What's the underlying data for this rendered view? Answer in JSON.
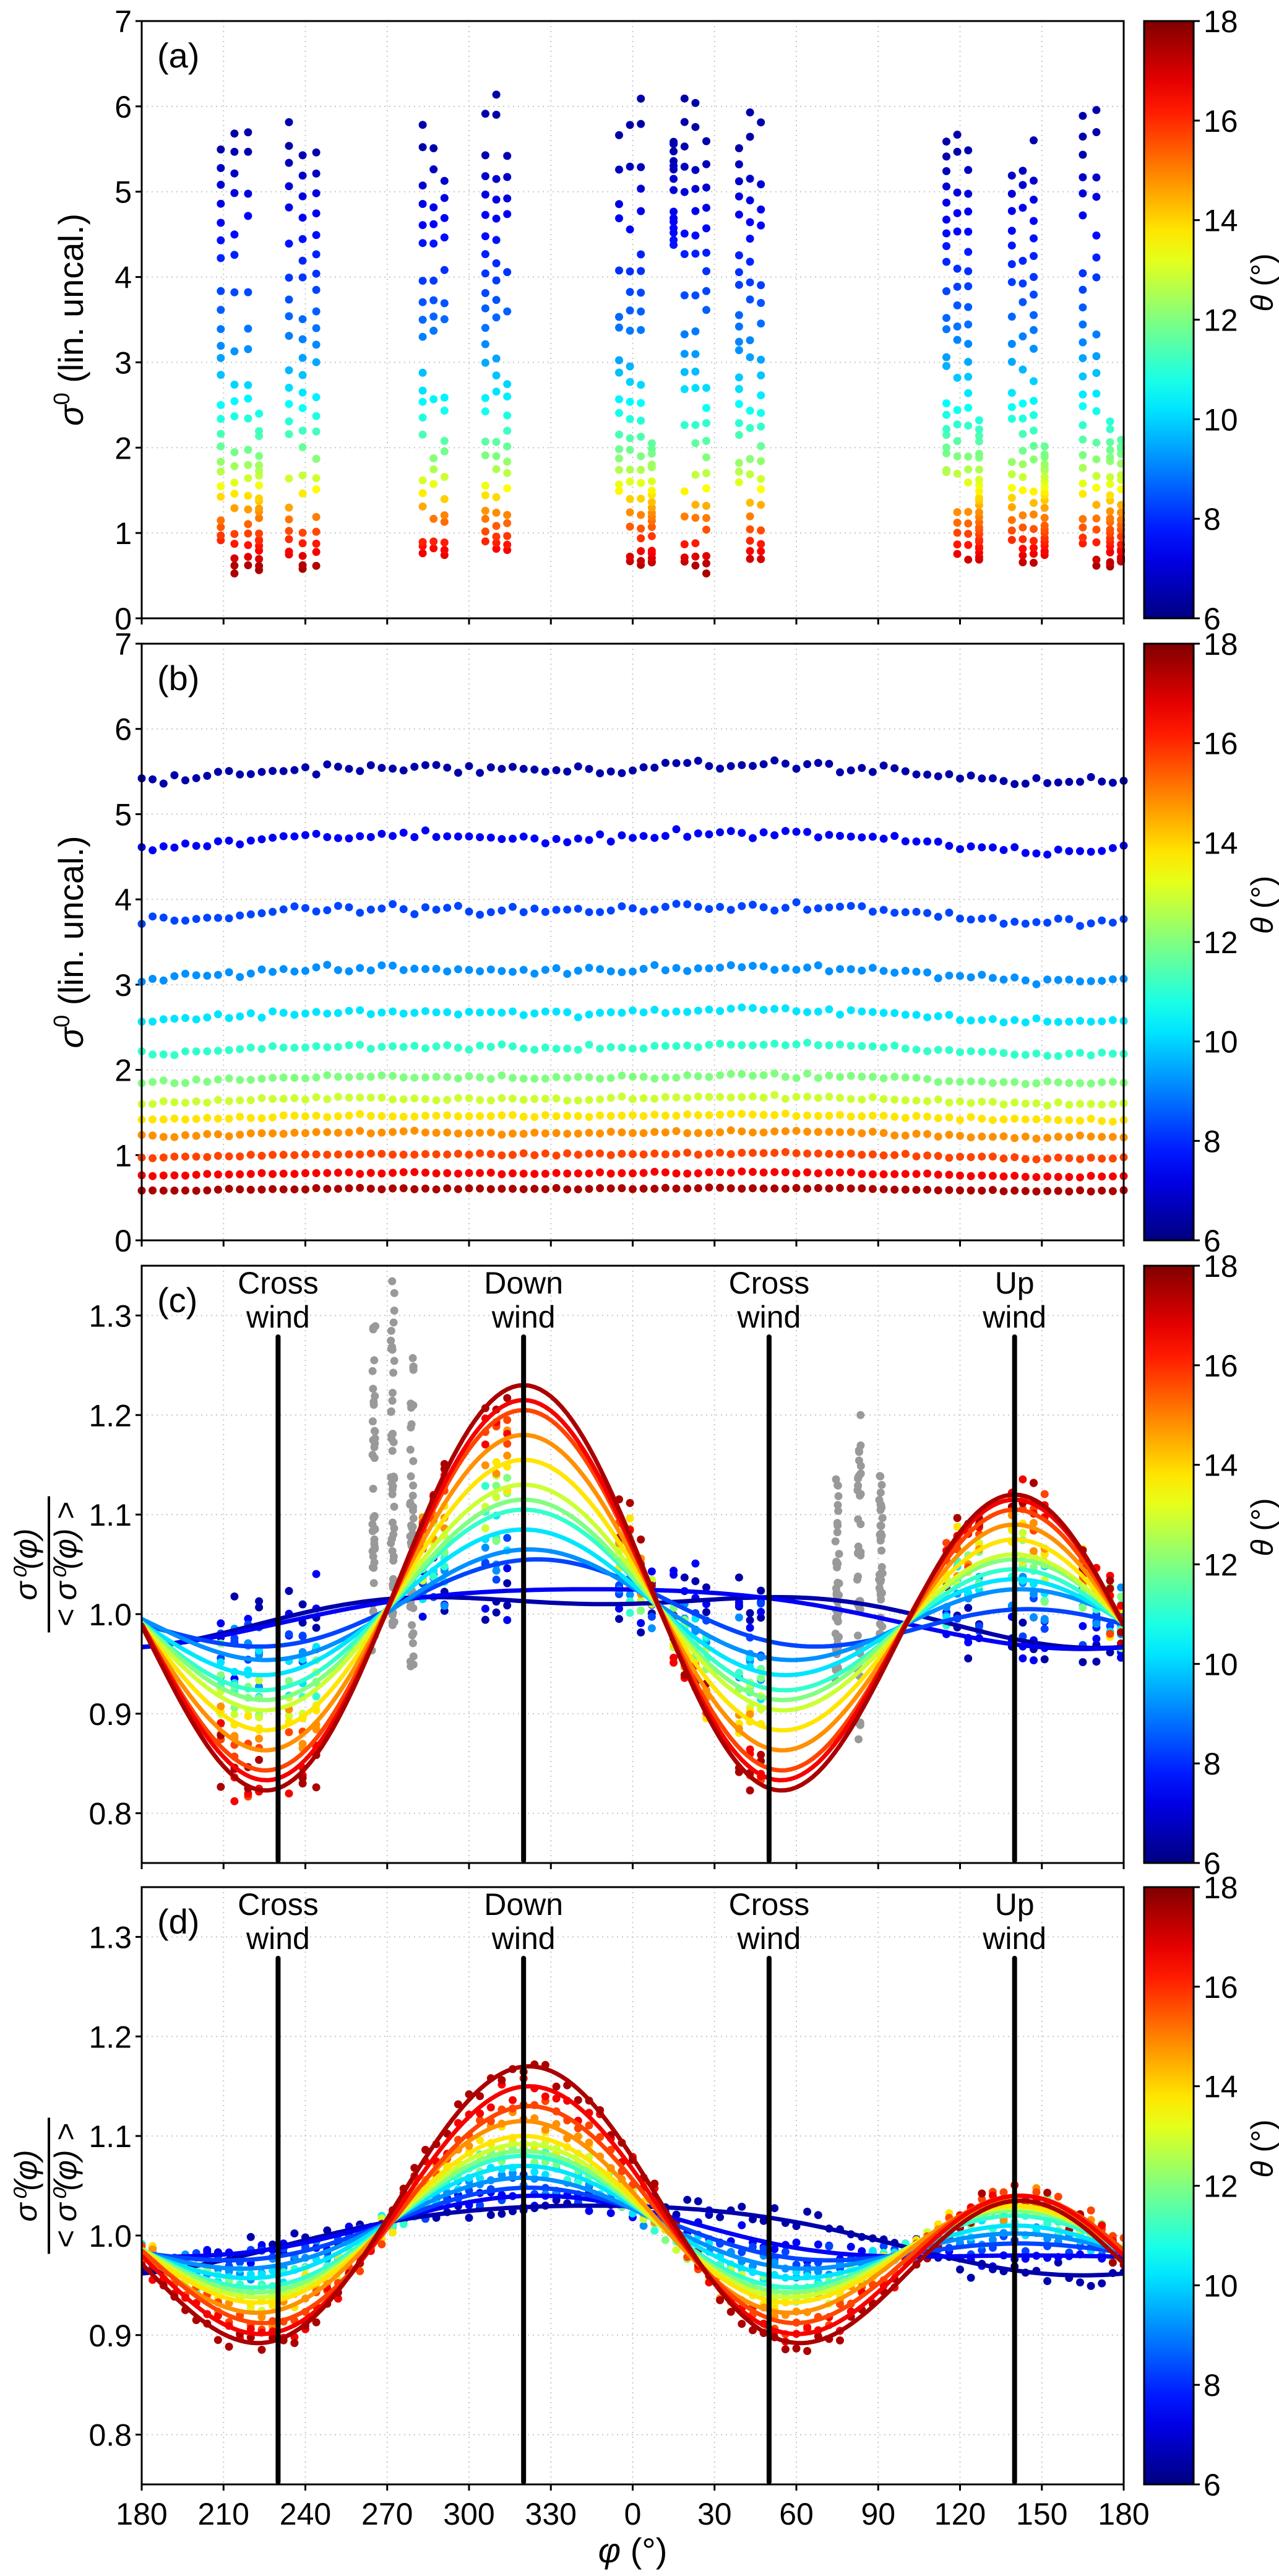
{
  "figure": {
    "x_axis": {
      "label_symbol": "φ",
      "label_unit": "(°)",
      "ticks": [
        180,
        210,
        240,
        270,
        300,
        330,
        0,
        30,
        60,
        90,
        120,
        150,
        180
      ],
      "range": [
        180,
        540
      ],
      "note": "azimuth axis wraps: 180→360/0→180"
    },
    "colorbar": {
      "label_symbol": "θ",
      "label_unit": "(°)",
      "range": [
        6,
        18
      ],
      "ticks": [
        "6",
        "8",
        "10",
        "12",
        "14",
        "16",
        "18"
      ],
      "colormap": "jet"
    },
    "wind_markers": [
      {
        "phi": 230,
        "line1": "Cross",
        "line2": "wind"
      },
      {
        "phi": 320,
        "line1": "Down",
        "line2": "wind"
      },
      {
        "phi": 50,
        "line1": "Cross",
        "line2": "wind"
      },
      {
        "phi": 140,
        "line1": "Up",
        "line2": "wind"
      }
    ]
  },
  "chart_data": [
    {
      "panel": "(a)",
      "type": "scatter",
      "ylabel_main": "σ",
      "ylabel_sup": "0",
      "ylabel_rest": " (lin. uncal.)",
      "ylim": [
        0,
        7
      ],
      "yticks": [
        "0",
        "1",
        "2",
        "3",
        "4",
        "5",
        "6",
        "7"
      ],
      "grid": true,
      "columns": [
        {
          "phi": 209,
          "top": 5.5,
          "bottom": 0.9
        },
        {
          "phi": 214,
          "top": 5.7,
          "bottom": 0.55
        },
        {
          "phi": 219,
          "top": 5.7,
          "bottom": 0.55
        },
        {
          "phi": 223,
          "top": 2.4,
          "bottom": 0.58
        },
        {
          "phi": 234,
          "top": 5.8,
          "bottom": 0.75
        },
        {
          "phi": 239,
          "top": 5.95,
          "bottom": 0.55
        },
        {
          "phi": 244,
          "top": 5.7,
          "bottom": 0.6
        },
        {
          "phi": 283,
          "top": 5.8,
          "bottom": 0.75
        },
        {
          "phi": 287,
          "top": 5.5,
          "bottom": 0.75
        },
        {
          "phi": 291,
          "top": 5.1,
          "bottom": 0.75
        },
        {
          "phi": 306,
          "top": 5.9,
          "bottom": 0.85
        },
        {
          "phi": 310,
          "top": 6.15,
          "bottom": 0.8
        },
        {
          "phi": 314,
          "top": 5.9,
          "bottom": 0.8
        },
        {
          "phi": 355,
          "top": 5.9,
          "bottom": 1.5
        },
        {
          "phi": 359,
          "top": 6.05,
          "bottom": 0.65
        },
        {
          "phi": 3,
          "top": 6.05,
          "bottom": 0.62
        },
        {
          "phi": 7,
          "top": 2.2,
          "bottom": 0.65
        },
        {
          "phi": 15,
          "top": 5.6,
          "bottom": 4.3
        },
        {
          "phi": 19,
          "top": 6.05,
          "bottom": 0.55
        },
        {
          "phi": 23,
          "top": 6.05,
          "bottom": 0.55
        },
        {
          "phi": 27,
          "top": 6.1,
          "bottom": 0.55
        },
        {
          "phi": 39,
          "top": 5.5,
          "bottom": 1.6
        },
        {
          "phi": 43,
          "top": 5.9,
          "bottom": 0.6
        },
        {
          "phi": 47,
          "top": 5.8,
          "bottom": 0.6
        },
        {
          "phi": 115,
          "top": 5.6,
          "bottom": 1.7
        },
        {
          "phi": 119,
          "top": 5.7,
          "bottom": 0.7
        },
        {
          "phi": 123,
          "top": 5.7,
          "bottom": 0.7
        },
        {
          "phi": 127,
          "top": 2.3,
          "bottom": 0.7
        },
        {
          "phi": 139,
          "top": 5.4,
          "bottom": 0.9
        },
        {
          "phi": 143,
          "top": 5.5,
          "bottom": 0.65
        },
        {
          "phi": 147,
          "top": 5.6,
          "bottom": 0.65
        },
        {
          "phi": 151,
          "top": 2.0,
          "bottom": 0.75
        },
        {
          "phi": 165,
          "top": 5.9,
          "bottom": 0.9
        },
        {
          "phi": 170,
          "top": 5.95,
          "bottom": 0.6
        },
        {
          "phi": 175,
          "top": 2.3,
          "bottom": 0.6
        },
        {
          "phi": 179,
          "top": 2.1,
          "bottom": 0.65
        }
      ]
    },
    {
      "panel": "(b)",
      "type": "scatter",
      "ylabel_main": "σ",
      "ylabel_sup": "0",
      "ylabel_rest": " (lin. uncal.)",
      "ylim": [
        0,
        7
      ],
      "yticks": [
        "0",
        "1",
        "2",
        "3",
        "4",
        "5",
        "6",
        "7"
      ],
      "grid": true,
      "phi_step": 4,
      "series": [
        {
          "theta": 6.5,
          "mean": 5.5,
          "amp": 0.18
        },
        {
          "theta": 7.4,
          "mean": 4.7,
          "amp": 0.18
        },
        {
          "theta": 8.3,
          "mean": 3.85,
          "amp": 0.16
        },
        {
          "theta": 9.2,
          "mean": 3.15,
          "amp": 0.14
        },
        {
          "theta": 10.2,
          "mean": 2.65,
          "amp": 0.12
        },
        {
          "theta": 11.1,
          "mean": 2.25,
          "amp": 0.1
        },
        {
          "theta": 12.0,
          "mean": 1.9,
          "amp": 0.08
        },
        {
          "theta": 12.9,
          "mean": 1.65,
          "amp": 0.07
        },
        {
          "theta": 13.8,
          "mean": 1.45,
          "amp": 0.06
        },
        {
          "theta": 14.8,
          "mean": 1.25,
          "amp": 0.06
        },
        {
          "theta": 15.7,
          "mean": 1.0,
          "amp": 0.05
        },
        {
          "theta": 16.6,
          "mean": 0.78,
          "amp": 0.04
        },
        {
          "theta": 17.5,
          "mean": 0.6,
          "amp": 0.03
        }
      ]
    },
    {
      "panel": "(c)",
      "type": "scatter+line",
      "ylabel_num": "σ0(φ)",
      "ylabel_den": "< σ0(φ) >",
      "ylim": [
        0.75,
        1.35
      ],
      "yticks": [
        "0.8",
        "0.9",
        "1.0",
        "1.1",
        "1.2",
        "1.3"
      ],
      "grid": true,
      "fit_model": "1 + a·cos(φ−φ0) + b·cos(2(φ−φ0))",
      "fits": [
        {
          "theta": 6.5,
          "a": 0.022,
          "b": -0.012,
          "phi0": 350
        },
        {
          "theta": 7.4,
          "a": 0.03,
          "b": -0.005,
          "phi0": 345
        },
        {
          "theta": 8.3,
          "a": 0.025,
          "b": 0.03,
          "phi0": 325
        },
        {
          "theta": 9.2,
          "a": 0.02,
          "b": 0.045,
          "phi0": 322
        },
        {
          "theta": 10.2,
          "a": 0.025,
          "b": 0.06,
          "phi0": 320
        },
        {
          "theta": 11.1,
          "a": 0.03,
          "b": 0.075,
          "phi0": 320
        },
        {
          "theta": 12.0,
          "a": 0.03,
          "b": 0.085,
          "phi0": 320
        },
        {
          "theta": 12.9,
          "a": 0.035,
          "b": 0.095,
          "phi0": 320
        },
        {
          "theta": 13.8,
          "a": 0.04,
          "b": 0.115,
          "phi0": 320
        },
        {
          "theta": 14.8,
          "a": 0.045,
          "b": 0.135,
          "phi0": 320
        },
        {
          "theta": 15.7,
          "a": 0.05,
          "b": 0.155,
          "phi0": 320
        },
        {
          "theta": 16.6,
          "a": 0.05,
          "b": 0.165,
          "phi0": 320
        },
        {
          "theta": 17.5,
          "a": 0.055,
          "b": 0.175,
          "phi0": 320
        }
      ],
      "gray_columns": [
        {
          "phi": 265,
          "top": 1.3,
          "bottom": 0.96
        },
        {
          "phi": 272,
          "top": 1.34,
          "bottom": 0.98
        },
        {
          "phi": 279,
          "top": 1.26,
          "bottom": 0.94
        },
        {
          "phi": 75,
          "top": 1.14,
          "bottom": 0.93
        },
        {
          "phi": 83,
          "top": 1.2,
          "bottom": 0.87
        },
        {
          "phi": 91,
          "top": 1.15,
          "bottom": 0.95
        }
      ]
    },
    {
      "panel": "(d)",
      "type": "scatter+line",
      "ylabel_num": "σ0(φ)",
      "ylabel_den": "< σ0(φ) >",
      "ylim": [
        0.75,
        1.35
      ],
      "yticks": [
        "0.8",
        "0.9",
        "1.0",
        "1.1",
        "1.2",
        "1.3"
      ],
      "grid": true,
      "fit_model": "1 + a·cos(φ−φ0) + b·cos(2(φ−φ0))",
      "fits": [
        {
          "theta": 6.5,
          "a": 0.035,
          "b": -0.005,
          "phi0": 345
        },
        {
          "theta": 7.4,
          "a": 0.03,
          "b": 0.01,
          "phi0": 325
        },
        {
          "theta": 8.3,
          "a": 0.028,
          "b": 0.02,
          "phi0": 322
        },
        {
          "theta": 9.2,
          "a": 0.028,
          "b": 0.03,
          "phi0": 320
        },
        {
          "theta": 10.2,
          "a": 0.03,
          "b": 0.04,
          "phi0": 320
        },
        {
          "theta": 11.1,
          "a": 0.03,
          "b": 0.05,
          "phi0": 320
        },
        {
          "theta": 12.0,
          "a": 0.03,
          "b": 0.055,
          "phi0": 320
        },
        {
          "theta": 12.9,
          "a": 0.032,
          "b": 0.06,
          "phi0": 320
        },
        {
          "theta": 13.8,
          "a": 0.035,
          "b": 0.065,
          "phi0": 320
        },
        {
          "theta": 14.8,
          "a": 0.04,
          "b": 0.075,
          "phi0": 320
        },
        {
          "theta": 15.7,
          "a": 0.045,
          "b": 0.085,
          "phi0": 322
        },
        {
          "theta": 16.6,
          "a": 0.055,
          "b": 0.095,
          "phi0": 322
        },
        {
          "theta": 17.5,
          "a": 0.0675,
          "b": 0.1025,
          "phi0": 322
        }
      ],
      "scatter_spread": 0.02
    }
  ]
}
